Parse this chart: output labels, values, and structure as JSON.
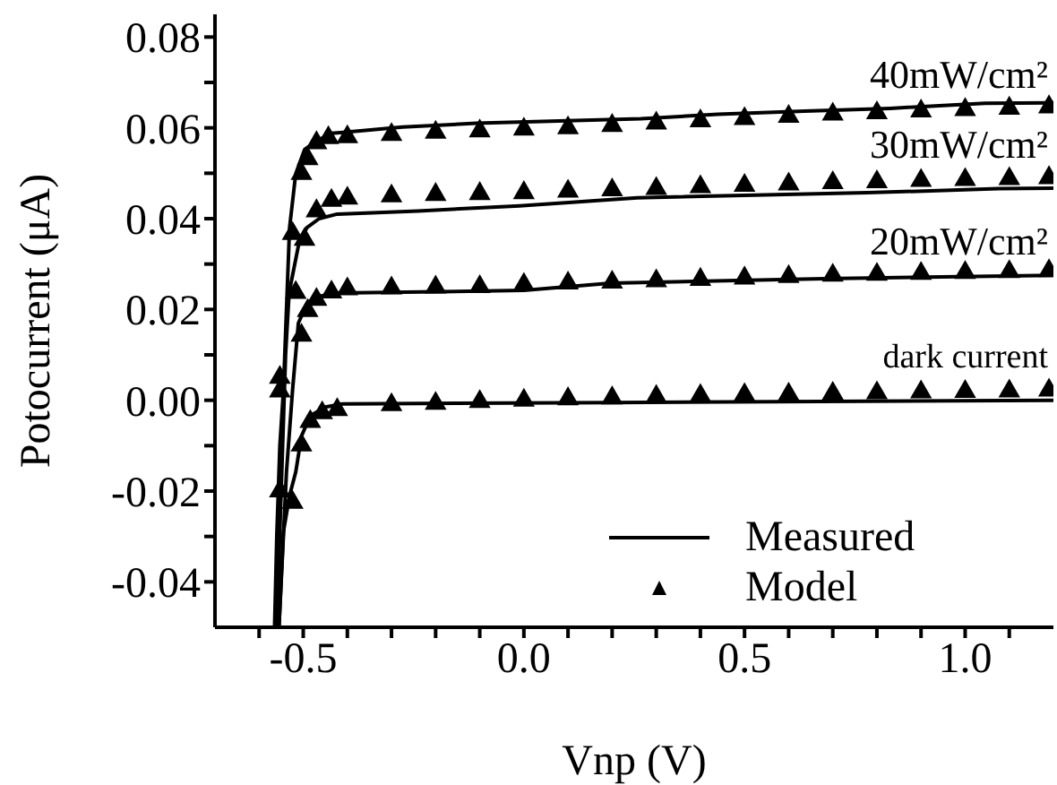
{
  "chart_data": {
    "type": "line",
    "xlabel": "Vnp (V)",
    "ylabel": "Potocurrent (μA)",
    "xlim": [
      -0.7,
      1.2
    ],
    "ylim": [
      -0.05,
      0.085
    ],
    "xticks": [
      {
        "value": -0.6,
        "label": null
      },
      {
        "value": -0.5,
        "label": "-0.5"
      },
      {
        "value": -0.4,
        "label": null
      },
      {
        "value": -0.3,
        "label": null
      },
      {
        "value": -0.2,
        "label": null
      },
      {
        "value": -0.1,
        "label": null
      },
      {
        "value": 0,
        "label": "0.0"
      },
      {
        "value": 0.1,
        "label": null
      },
      {
        "value": 0.2,
        "label": null
      },
      {
        "value": 0.3,
        "label": null
      },
      {
        "value": 0.4,
        "label": null
      },
      {
        "value": 0.5,
        "label": "0.5"
      },
      {
        "value": 0.6,
        "label": null
      },
      {
        "value": 0.7,
        "label": null
      },
      {
        "value": 0.8,
        "label": null
      },
      {
        "value": 0.9,
        "label": null
      },
      {
        "value": 1.0,
        "label": "1.0"
      },
      {
        "value": 1.1,
        "label": null
      }
    ],
    "yticks": [
      {
        "value": -0.04,
        "label": "-0.04"
      },
      {
        "value": -0.03,
        "label": null
      },
      {
        "value": -0.02,
        "label": "-0.02"
      },
      {
        "value": -0.01,
        "label": null
      },
      {
        "value": 0,
        "label": "0.00"
      },
      {
        "value": 0.01,
        "label": null
      },
      {
        "value": 0.02,
        "label": "0.02"
      },
      {
        "value": 0.03,
        "label": null
      },
      {
        "value": 0.04,
        "label": "0.04"
      },
      {
        "value": 0.05,
        "label": null
      },
      {
        "value": 0.06,
        "label": "0.06"
      },
      {
        "value": 0.07,
        "label": null
      },
      {
        "value": 0.08,
        "label": "0.08"
      }
    ],
    "grid": false,
    "legend": "bottom right",
    "marker": "none",
    "line_style": "solid",
    "annotations": [
      "40mW/cm²",
      "30mW/cm²",
      "20mW/cm²",
      "dark current"
    ],
    "series": [
      {
        "name": "Measured",
        "color": "#000000",
        "x": [
          -0.565,
          -0.56,
          -0.553,
          -0.545,
          -0.531,
          -0.517,
          -0.497,
          -0.47,
          -0.436,
          -0.41,
          -0.275,
          -0.107,
          0.265,
          0.44,
          0.636,
          0.83,
          1.045,
          1.2
        ],
        "values": [
          -0.05,
          -0.03,
          -0.01,
          0.002,
          0.038,
          0.0499,
          0.0552,
          0.0571,
          0.0588,
          0.059,
          0.0602,
          0.061,
          0.062,
          0.063,
          0.0637,
          0.0643,
          0.0654,
          0.0655
        ]
      },
      {
        "color": "#000000",
        "x": [
          -0.56,
          -0.55,
          -0.54,
          -0.532,
          -0.511,
          -0.492,
          -0.464,
          -0.423,
          -0.24,
          -0.01,
          0.257,
          0.778,
          1.075,
          1.2
        ],
        "values": [
          -0.05,
          -0.02,
          0.01,
          0.0237,
          0.034,
          0.038,
          0.04,
          0.041,
          0.0417,
          0.0428,
          0.0446,
          0.0457,
          0.0466,
          0.0467
        ]
      },
      {
        "color": "#000000",
        "x": [
          -0.555,
          -0.545,
          -0.538,
          -0.524,
          -0.511,
          -0.49,
          -0.464,
          -0.423,
          0.0,
          0.196,
          0.68,
          1.2
        ],
        "values": [
          -0.05,
          -0.03,
          -0.0158,
          0.0025,
          0.017,
          0.0216,
          0.0229,
          0.0236,
          0.0242,
          0.0258,
          0.0268,
          0.0275
        ]
      },
      {
        "color": "#000000",
        "x": [
          -0.555,
          -0.545,
          -0.531,
          -0.517,
          -0.504,
          -0.484,
          -0.45,
          -0.411,
          0.2,
          1.2
        ],
        "values": [
          -0.05,
          -0.029,
          -0.021,
          -0.0158,
          -0.0079,
          -0.0034,
          -0.0015,
          -0.0008,
          -0.0005,
          0.0
        ]
      },
      {
        "name": "Model",
        "type": "scatter",
        "color": "#000000",
        "marker": "triangle",
        "x": [
          -0.553,
          -0.524,
          -0.504,
          -0.49,
          -0.47,
          -0.443,
          -0.4,
          -0.3,
          -0.2,
          -0.1,
          0,
          0.1,
          0.2,
          0.3,
          0.4,
          0.5,
          0.6,
          0.7,
          0.8,
          0.9,
          1.0,
          1.1,
          1.19
        ],
        "values": [
          0.005,
          0.0367,
          0.0499,
          0.0532,
          0.0567,
          0.0578,
          0.058,
          0.0585,
          0.059,
          0.0593,
          0.0597,
          0.06,
          0.0605,
          0.061,
          0.0615,
          0.062,
          0.0625,
          0.063,
          0.0633,
          0.0637,
          0.064,
          0.0643,
          0.0646
        ]
      },
      {
        "type": "scatter",
        "color": "#000000",
        "marker": "triangle",
        "x": [
          -0.553,
          -0.517,
          -0.497,
          -0.47,
          -0.436,
          -0.4,
          -0.3,
          -0.2,
          -0.1,
          0,
          0.1,
          0.2,
          0.3,
          0.4,
          0.5,
          0.6,
          0.7,
          0.8,
          0.9,
          1.0,
          1.1,
          1.19
        ],
        "values": [
          0.002,
          0.0237,
          0.0354,
          0.0417,
          0.044,
          0.0445,
          0.045,
          0.0453,
          0.0455,
          0.0457,
          0.046,
          0.0463,
          0.0466,
          0.047,
          0.0473,
          0.0476,
          0.0479,
          0.0481,
          0.0484,
          0.0486,
          0.0488,
          0.049
        ]
      },
      {
        "type": "scatter",
        "color": "#000000",
        "marker": "triangle",
        "x": [
          -0.553,
          -0.504,
          -0.49,
          -0.47,
          -0.436,
          -0.4,
          -0.3,
          -0.2,
          -0.1,
          0,
          0.1,
          0.2,
          0.3,
          0.4,
          0.5,
          0.6,
          0.7,
          0.8,
          0.9,
          1.0,
          1.1,
          1.19
        ],
        "values": [
          -0.02,
          0.0143,
          0.0197,
          0.0222,
          0.0238,
          0.0245,
          0.0247,
          0.0249,
          0.025,
          0.0255,
          0.0258,
          0.026,
          0.0263,
          0.0266,
          0.0269,
          0.0272,
          0.0275,
          0.0277,
          0.0279,
          0.0281,
          0.0283,
          0.0285
        ]
      },
      {
        "type": "scatter",
        "color": "#000000",
        "marker": "triangle",
        "x": [
          -0.524,
          -0.504,
          -0.484,
          -0.457,
          -0.423,
          -0.3,
          -0.2,
          -0.1,
          0,
          0.1,
          0.2,
          0.3,
          0.4,
          0.5,
          0.6,
          0.7,
          0.8,
          0.9,
          1.0,
          1.1,
          1.19
        ],
        "values": [
          -0.0225,
          -0.0099,
          -0.0047,
          -0.0028,
          -0.0021,
          -0.001,
          -0.0007,
          -0.0003,
          0,
          0.0003,
          0.0005,
          0.0008,
          0.001,
          0.0012,
          0.0013,
          0.0015,
          0.0016,
          0.0018,
          0.0019,
          0.002,
          0.0022
        ]
      }
    ]
  }
}
